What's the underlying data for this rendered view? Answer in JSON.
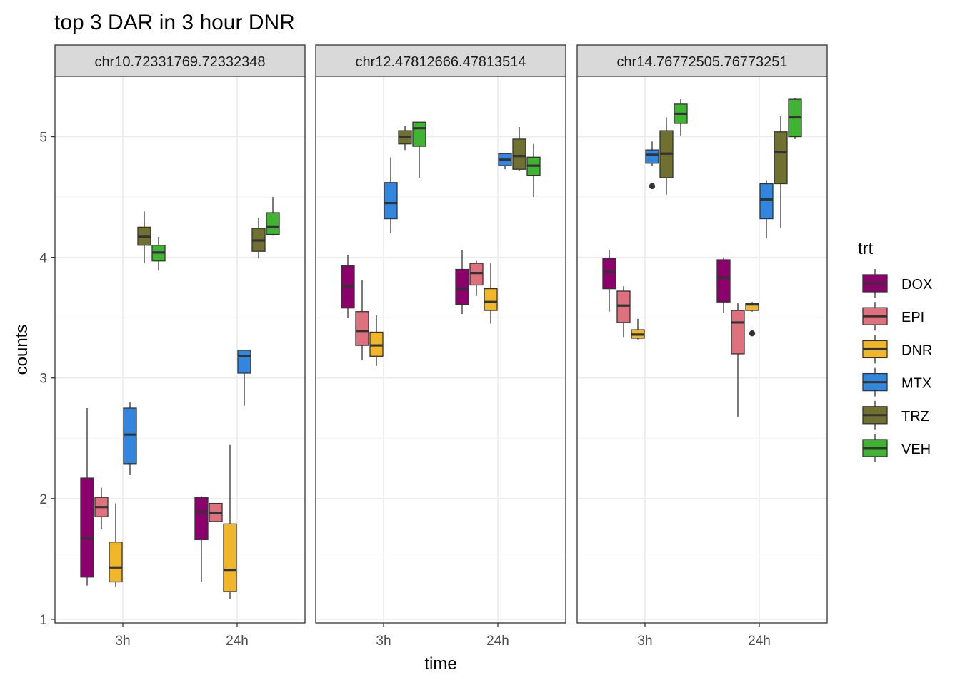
{
  "chart_data": {
    "type": "boxplot",
    "title": "top 3 DAR in 3 hour DNR",
    "xlabel": "time",
    "ylabel": "counts",
    "ylim": [
      0.97,
      5.5
    ],
    "y_ticks": [
      1,
      2,
      3,
      4,
      5
    ],
    "categories": [
      "3h",
      "24h"
    ],
    "legend": {
      "title": "trt",
      "position": "right",
      "entries": [
        {
          "name": "DOX",
          "color": "#8B006B"
        },
        {
          "name": "EPI",
          "color": "#DF707E"
        },
        {
          "name": "DNR",
          "color": "#F1B72B"
        },
        {
          "name": "MTX",
          "color": "#3386DD"
        },
        {
          "name": "TRZ",
          "color": "#707031"
        },
        {
          "name": "VEH",
          "color": "#41B333"
        }
      ]
    },
    "panels": [
      {
        "label": "chr10.72331769.72332348",
        "groups": {
          "3h": [
            {
              "trt": "DOX",
              "min": 1.28,
              "q1": 1.35,
              "median": 1.67,
              "q3": 2.17,
              "max": 2.75,
              "outliers": []
            },
            {
              "trt": "EPI",
              "min": 1.75,
              "q1": 1.85,
              "median": 1.93,
              "q3": 2.01,
              "max": 2.09,
              "outliers": []
            },
            {
              "trt": "DNR",
              "min": 1.27,
              "q1": 1.31,
              "median": 1.43,
              "q3": 1.64,
              "max": 1.96,
              "outliers": []
            },
            {
              "trt": "MTX",
              "min": 2.2,
              "q1": 2.29,
              "median": 2.53,
              "q3": 2.75,
              "max": 2.8,
              "outliers": []
            },
            {
              "trt": "TRZ",
              "min": 3.95,
              "q1": 4.1,
              "median": 4.17,
              "q3": 4.25,
              "max": 4.38,
              "outliers": []
            },
            {
              "trt": "VEH",
              "min": 3.89,
              "q1": 3.97,
              "median": 4.04,
              "q3": 4.1,
              "max": 4.17,
              "outliers": []
            }
          ],
          "24h": [
            {
              "trt": "DOX",
              "min": 1.31,
              "q1": 1.66,
              "median": 1.89,
              "q3": 2.01,
              "max": 2.02,
              "outliers": []
            },
            {
              "trt": "EPI",
              "min": 1.81,
              "q1": 1.81,
              "median": 1.88,
              "q3": 1.96,
              "max": 1.96,
              "outliers": []
            },
            {
              "trt": "DNR",
              "min": 1.17,
              "q1": 1.23,
              "median": 1.41,
              "q3": 1.79,
              "max": 2.45,
              "outliers": []
            },
            {
              "trt": "MTX",
              "min": 2.77,
              "q1": 3.04,
              "median": 3.18,
              "q3": 3.23,
              "max": 3.23,
              "outliers": []
            },
            {
              "trt": "TRZ",
              "min": 3.99,
              "q1": 4.05,
              "median": 4.14,
              "q3": 4.24,
              "max": 4.33,
              "outliers": []
            },
            {
              "trt": "VEH",
              "min": 4.18,
              "q1": 4.19,
              "median": 4.25,
              "q3": 4.37,
              "max": 4.5,
              "outliers": []
            }
          ]
        }
      },
      {
        "label": "chr12.47812666.47813514",
        "groups": {
          "3h": [
            {
              "trt": "DOX",
              "min": 3.5,
              "q1": 3.58,
              "median": 3.76,
              "q3": 3.93,
              "max": 4.02,
              "outliers": []
            },
            {
              "trt": "EPI",
              "min": 3.15,
              "q1": 3.27,
              "median": 3.39,
              "q3": 3.55,
              "max": 3.81,
              "outliers": []
            },
            {
              "trt": "DNR",
              "min": 3.1,
              "q1": 3.18,
              "median": 3.27,
              "q3": 3.38,
              "max": 3.52,
              "outliers": []
            },
            {
              "trt": "MTX",
              "min": 4.2,
              "q1": 4.32,
              "median": 4.45,
              "q3": 4.62,
              "max": 4.83,
              "outliers": []
            },
            {
              "trt": "TRZ",
              "min": 4.89,
              "q1": 4.94,
              "median": 5.0,
              "q3": 5.05,
              "max": 5.09,
              "outliers": []
            },
            {
              "trt": "VEH",
              "min": 4.66,
              "q1": 4.92,
              "median": 5.07,
              "q3": 5.12,
              "max": 5.12,
              "outliers": []
            }
          ],
          "24h": [
            {
              "trt": "DOX",
              "min": 3.53,
              "q1": 3.61,
              "median": 3.74,
              "q3": 3.9,
              "max": 4.06,
              "outliers": []
            },
            {
              "trt": "EPI",
              "min": 3.68,
              "q1": 3.77,
              "median": 3.87,
              "q3": 3.95,
              "max": 3.97,
              "outliers": []
            },
            {
              "trt": "DNR",
              "min": 3.45,
              "q1": 3.56,
              "median": 3.63,
              "q3": 3.74,
              "max": 3.95,
              "outliers": []
            },
            {
              "trt": "MTX",
              "min": 4.73,
              "q1": 4.76,
              "median": 4.81,
              "q3": 4.86,
              "max": 4.86,
              "outliers": []
            },
            {
              "trt": "TRZ",
              "min": 4.72,
              "q1": 4.73,
              "median": 4.84,
              "q3": 4.98,
              "max": 5.08,
              "outliers": []
            },
            {
              "trt": "VEH",
              "min": 4.5,
              "q1": 4.68,
              "median": 4.76,
              "q3": 4.83,
              "max": 4.94,
              "outliers": []
            }
          ]
        }
      },
      {
        "label": "chr14.76772505.76773251",
        "groups": {
          "3h": [
            {
              "trt": "DOX",
              "min": 3.55,
              "q1": 3.74,
              "median": 3.88,
              "q3": 3.99,
              "max": 4.06,
              "outliers": []
            },
            {
              "trt": "EPI",
              "min": 3.34,
              "q1": 3.46,
              "median": 3.6,
              "q3": 3.72,
              "max": 3.76,
              "outliers": []
            },
            {
              "trt": "DNR",
              "min": 3.32,
              "q1": 3.33,
              "median": 3.36,
              "q3": 3.4,
              "max": 3.49,
              "outliers": []
            },
            {
              "trt": "MTX",
              "min": 4.76,
              "q1": 4.78,
              "median": 4.85,
              "q3": 4.89,
              "max": 4.96,
              "outliers": [
                4.59
              ]
            },
            {
              "trt": "TRZ",
              "min": 4.52,
              "q1": 4.66,
              "median": 4.86,
              "q3": 5.05,
              "max": 5.16,
              "outliers": []
            },
            {
              "trt": "VEH",
              "min": 5.01,
              "q1": 5.11,
              "median": 5.19,
              "q3": 5.27,
              "max": 5.31,
              "outliers": []
            }
          ],
          "24h": [
            {
              "trt": "DOX",
              "min": 3.54,
              "q1": 3.63,
              "median": 3.83,
              "q3": 3.98,
              "max": 4.0,
              "outliers": []
            },
            {
              "trt": "EPI",
              "min": 2.68,
              "q1": 3.2,
              "median": 3.46,
              "q3": 3.56,
              "max": 3.62,
              "outliers": []
            },
            {
              "trt": "DNR",
              "min": 3.55,
              "q1": 3.56,
              "median": 3.61,
              "q3": 3.62,
              "max": 3.63,
              "outliers": [
                3.37
              ]
            },
            {
              "trt": "MTX",
              "min": 4.16,
              "q1": 4.32,
              "median": 4.48,
              "q3": 4.61,
              "max": 4.64,
              "outliers": []
            },
            {
              "trt": "TRZ",
              "min": 4.24,
              "q1": 4.61,
              "median": 4.87,
              "q3": 5.04,
              "max": 5.17,
              "outliers": []
            },
            {
              "trt": "VEH",
              "min": 4.98,
              "q1": 5.0,
              "median": 5.16,
              "q3": 5.31,
              "max": 5.32,
              "outliers": []
            }
          ]
        }
      }
    ]
  }
}
